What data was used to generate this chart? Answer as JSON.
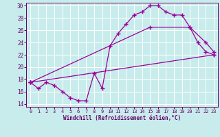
{
  "title": "",
  "xlabel": "Windchill (Refroidissement éolien,°C)",
  "ylabel": "",
  "bg_color": "#c8ecec",
  "line_color": "#990099",
  "grid_color": "#ffffff",
  "xlim": [
    -0.5,
    23.5
  ],
  "ylim": [
    13.5,
    30.5
  ],
  "xticks": [
    0,
    1,
    2,
    3,
    4,
    5,
    6,
    7,
    8,
    9,
    10,
    11,
    12,
    13,
    14,
    15,
    16,
    17,
    18,
    19,
    20,
    21,
    22,
    23
  ],
  "yticks": [
    14,
    16,
    18,
    20,
    22,
    24,
    26,
    28,
    30
  ],
  "line1_x": [
    0,
    1,
    2,
    3,
    4,
    5,
    6,
    7,
    8,
    9,
    10,
    11,
    12,
    13,
    14,
    15,
    16,
    17,
    18,
    19,
    20,
    21,
    22,
    23
  ],
  "line1_y": [
    17.5,
    16.5,
    17.5,
    17.0,
    16.0,
    15.0,
    14.5,
    14.5,
    19.0,
    16.5,
    23.5,
    25.5,
    27.0,
    28.5,
    29.0,
    30.0,
    30.0,
    29.0,
    28.5,
    28.5,
    26.5,
    24.0,
    22.5,
    22.0
  ],
  "line2_x": [
    0,
    23
  ],
  "line2_y": [
    17.5,
    22.0
  ],
  "line3_x": [
    0,
    15,
    20,
    22,
    23
  ],
  "line3_y": [
    17.5,
    26.5,
    26.5,
    24.0,
    22.5
  ]
}
